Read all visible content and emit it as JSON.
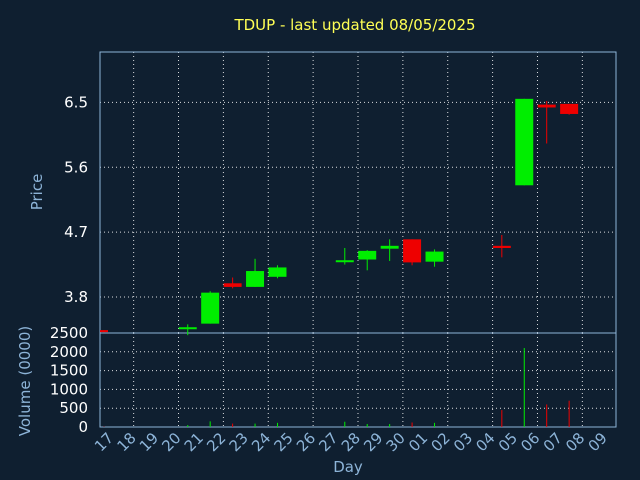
{
  "chart_data": {
    "type": "candlestick",
    "title": "TDUP - last updated 08/05/2025",
    "xlabel": "Day",
    "ylabel": "Price",
    "volume_ylabel": "Volume (0000)",
    "colors": {
      "up": "#00ee00",
      "down": "#ee0000",
      "background": "#0f1f30"
    },
    "grid": true,
    "price_ylim": [
      3.3,
      7.2
    ],
    "price_ticks": [
      "3.8",
      "4.7",
      "5.6",
      "6.5"
    ],
    "volume_ylim": [
      0,
      2500
    ],
    "volume_ticks": [
      "0",
      "500",
      "1000",
      "1500",
      "2000",
      "2500"
    ],
    "x_ticks": [
      "17",
      "18",
      "19",
      "20",
      "21",
      "22",
      "23",
      "24",
      "25",
      "26",
      "27",
      "28",
      "29",
      "30",
      "01",
      "02",
      "03",
      "04",
      "05",
      "06",
      "07",
      "08",
      "09"
    ],
    "candles": [
      {
        "day": "17",
        "open": 3.34,
        "high": 3.34,
        "low": 3.31,
        "close": 3.33,
        "volume": 10
      },
      {
        "day": "21",
        "open": 3.36,
        "high": 3.42,
        "low": 3.27,
        "close": 3.38,
        "volume": 50
      },
      {
        "day": "22",
        "open": 3.43,
        "high": 3.88,
        "low": 3.43,
        "close": 3.86,
        "volume": 150
      },
      {
        "day": "23",
        "open": 3.99,
        "high": 4.07,
        "low": 3.92,
        "close": 3.94,
        "volume": 90
      },
      {
        "day": "24",
        "open": 3.94,
        "high": 4.33,
        "low": 3.94,
        "close": 4.16,
        "volume": 90
      },
      {
        "day": "25",
        "open": 4.08,
        "high": 4.24,
        "low": 4.06,
        "close": 4.21,
        "volume": 110
      },
      {
        "day": "28",
        "open": 4.29,
        "high": 4.48,
        "low": 4.25,
        "close": 4.31,
        "volume": 140
      },
      {
        "day": "29",
        "open": 4.32,
        "high": 4.45,
        "low": 4.17,
        "close": 4.44,
        "volume": 80
      },
      {
        "day": "30",
        "open": 4.47,
        "high": 4.6,
        "low": 4.3,
        "close": 4.51,
        "volume": 80
      },
      {
        "day": "01",
        "open": 4.6,
        "high": 4.6,
        "low": 4.24,
        "close": 4.28,
        "volume": 120
      },
      {
        "day": "02",
        "open": 4.29,
        "high": 4.46,
        "low": 4.22,
        "close": 4.43,
        "volume": 110
      },
      {
        "day": "05",
        "open": 4.51,
        "high": 4.66,
        "low": 4.35,
        "close": 4.48,
        "volume": 450
      },
      {
        "day": "06",
        "open": 5.35,
        "high": 6.55,
        "low": 5.35,
        "close": 6.55,
        "volume": 2100
      },
      {
        "day": "07",
        "open": 6.47,
        "high": 6.52,
        "low": 5.93,
        "close": 6.43,
        "volume": 600
      },
      {
        "day": "08",
        "open": 6.48,
        "high": 6.48,
        "low": 6.33,
        "close": 6.34,
        "volume": 700
      }
    ]
  }
}
